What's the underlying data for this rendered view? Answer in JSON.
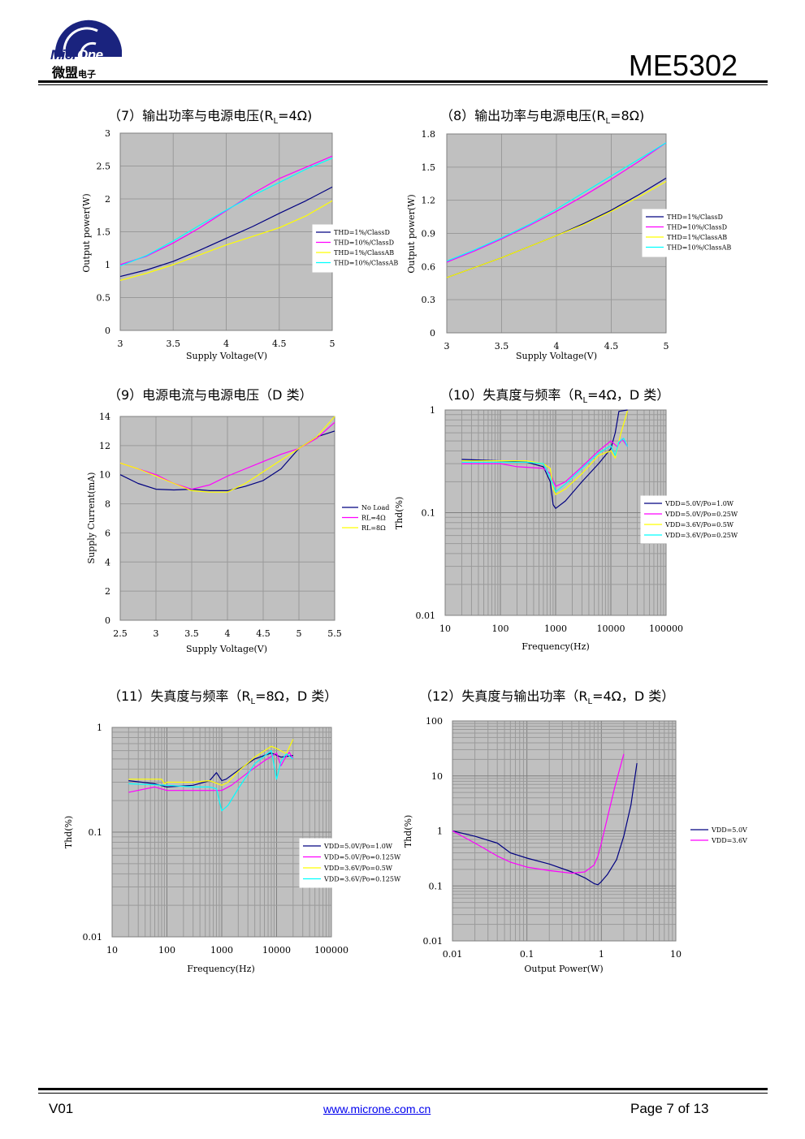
{
  "header": {
    "logo_word_part1": "Micr",
    "logo_word_part2": "One",
    "logo_cn": "微盟",
    "logo_cn_small": "电子",
    "part_number": "ME5302"
  },
  "colors": {
    "plot_bg": "#c0c0c0",
    "grid": "#9a9a9a",
    "navy": "#000080",
    "magenta": "#ff00ff",
    "yellow": "#ffff00",
    "cyan": "#00ffff"
  },
  "captions": [
    {
      "pre": "（7）输出功率与电源电压(R",
      "sub": "L",
      "post": "=4Ω)"
    },
    {
      "pre": "（8）输出功率与电源电压(R",
      "sub": "L",
      "post": "=8Ω)"
    },
    {
      "pre": "（9）电源电流与电源电压（D 类）",
      "sub": "",
      "post": ""
    },
    {
      "pre": "（10）失真度与频率（R",
      "sub": "L",
      "post": "=4Ω，D 类）"
    },
    {
      "pre": "（11）失真度与频率（R",
      "sub": "L",
      "post": "=8Ω，D 类）"
    },
    {
      "pre": "（12）失真度与输出功率（R",
      "sub": "L",
      "post": "=4Ω，D 类）"
    }
  ],
  "chart_data": [
    {
      "type": "line",
      "xlabel": "Supply Voltage(V)",
      "ylabel": "Output power(W)",
      "xlim": [
        3,
        5
      ],
      "ylim": [
        0,
        3
      ],
      "xticks": [
        "3",
        "3.5",
        "4",
        "4.5",
        "5"
      ],
      "yticks": [
        "0",
        "0.5",
        "1",
        "1.5",
        "2",
        "2.5",
        "3"
      ],
      "legend_position": "right",
      "series": [
        {
          "name": "THD=1%/ClassD",
          "color": "#000080",
          "x": [
            3,
            3.25,
            3.5,
            3.75,
            4,
            4.25,
            4.5,
            4.75,
            5
          ],
          "y": [
            0.82,
            0.92,
            1.05,
            1.22,
            1.4,
            1.58,
            1.78,
            1.97,
            2.18
          ]
        },
        {
          "name": "THD=10%/ClassD",
          "color": "#ff00ff",
          "x": [
            3,
            3.25,
            3.5,
            3.75,
            4,
            4.25,
            4.5,
            4.75,
            5
          ],
          "y": [
            1.0,
            1.13,
            1.33,
            1.56,
            1.82,
            2.08,
            2.31,
            2.48,
            2.65
          ]
        },
        {
          "name": "THD=1%/ClassAB",
          "color": "#ffff00",
          "x": [
            3,
            3.25,
            3.5,
            3.75,
            4,
            4.25,
            4.5,
            4.75,
            5
          ],
          "y": [
            0.76,
            0.87,
            1.0,
            1.15,
            1.3,
            1.43,
            1.56,
            1.74,
            1.97
          ]
        },
        {
          "name": "THD=10%/ClassAB",
          "color": "#00ffff",
          "x": [
            3,
            3.25,
            3.5,
            3.75,
            4,
            4.25,
            4.5,
            4.75,
            5
          ],
          "y": [
            0.98,
            1.14,
            1.36,
            1.6,
            1.83,
            2.05,
            2.25,
            2.45,
            2.62
          ]
        }
      ]
    },
    {
      "type": "line",
      "xlabel": "Supply Voltage(V)",
      "ylabel": "Output power(W)",
      "xlim": [
        3,
        5
      ],
      "ylim": [
        0,
        1.8
      ],
      "xticks": [
        "3",
        "3.5",
        "4",
        "4.5",
        "5"
      ],
      "yticks": [
        "0",
        "0.3",
        "0.6",
        "0.9",
        "1.2",
        "1.5",
        "1.8"
      ],
      "legend_position": "right",
      "series": [
        {
          "name": "THD=1%/ClassD",
          "color": "#000080",
          "x": [
            3,
            3.25,
            3.5,
            3.75,
            4,
            4.25,
            4.5,
            4.75,
            5
          ],
          "y": [
            0.5,
            0.59,
            0.68,
            0.78,
            0.88,
            0.99,
            1.11,
            1.25,
            1.4
          ]
        },
        {
          "name": "THD=10%/ClassD",
          "color": "#ff00ff",
          "x": [
            3,
            3.25,
            3.5,
            3.75,
            4,
            4.25,
            4.5,
            4.75,
            5
          ],
          "y": [
            0.64,
            0.74,
            0.85,
            0.97,
            1.1,
            1.24,
            1.39,
            1.55,
            1.72
          ]
        },
        {
          "name": "THD=1%/ClassAB",
          "color": "#ffff00",
          "x": [
            3,
            3.25,
            3.5,
            3.75,
            4,
            4.25,
            4.5,
            4.75,
            5
          ],
          "y": [
            0.5,
            0.59,
            0.68,
            0.78,
            0.88,
            0.98,
            1.1,
            1.23,
            1.37
          ]
        },
        {
          "name": "THD=10%/ClassAB",
          "color": "#00ffff",
          "x": [
            3,
            3.25,
            3.5,
            3.75,
            4,
            4.25,
            4.5,
            4.75,
            5
          ],
          "y": [
            0.65,
            0.75,
            0.86,
            0.98,
            1.12,
            1.27,
            1.42,
            1.57,
            1.72
          ]
        }
      ]
    },
    {
      "type": "line",
      "xlabel": "Supply Voltage(V)",
      "ylabel": "Supply Current(mA)",
      "xlim": [
        2.5,
        5.5
      ],
      "ylim": [
        0,
        14
      ],
      "xticks": [
        "2.5",
        "3",
        "3.5",
        "4",
        "4.5",
        "5",
        "5.5"
      ],
      "yticks": [
        "0",
        "2",
        "4",
        "6",
        "8",
        "10",
        "12",
        "14"
      ],
      "legend_position": "right",
      "series": [
        {
          "name": "No Load",
          "color": "#000080",
          "x": [
            2.5,
            2.75,
            3,
            3.25,
            3.5,
            3.75,
            4,
            4.25,
            4.5,
            4.75,
            5,
            5.25,
            5.5
          ],
          "y": [
            10.0,
            9.4,
            9.0,
            8.95,
            9.0,
            8.9,
            8.9,
            9.2,
            9.6,
            10.4,
            11.8,
            12.6,
            13.0
          ]
        },
        {
          "name": "RL=4Ω",
          "color": "#ff00ff",
          "x": [
            2.5,
            2.75,
            3,
            3.25,
            3.5,
            3.75,
            4,
            4.25,
            4.5,
            4.75,
            5,
            5.25,
            5.5
          ],
          "y": [
            10.8,
            10.4,
            10.0,
            9.4,
            9.0,
            9.3,
            9.9,
            10.4,
            10.9,
            11.4,
            11.8,
            12.5,
            13.6
          ]
        },
        {
          "name": "RL=8Ω",
          "color": "#ffff00",
          "x": [
            2.5,
            2.75,
            3,
            3.25,
            3.5,
            3.75,
            4,
            4.25,
            4.5,
            4.75,
            5,
            5.25,
            5.5
          ],
          "y": [
            10.8,
            10.4,
            9.9,
            9.4,
            8.9,
            8.8,
            8.8,
            9.4,
            10.2,
            11.0,
            11.8,
            12.6,
            14.0
          ]
        }
      ]
    },
    {
      "type": "line",
      "xlabel": "Frequency(Hz)",
      "ylabel": "Thd(%)",
      "xscale": "log",
      "yscale": "log",
      "xlim": [
        10,
        100000
      ],
      "ylim": [
        0.01,
        1
      ],
      "xticks": [
        "10",
        "100",
        "1000",
        "10000",
        "100000"
      ],
      "yticks": [
        "0.01",
        "0.1",
        "1"
      ],
      "legend_position": "right",
      "series": [
        {
          "name": "VDD=5.0V/Po=1.0W",
          "color": "#000080",
          "x": [
            20,
            100,
            300,
            600,
            800,
            900,
            1000,
            1500,
            3000,
            6000,
            10000,
            12000,
            14000,
            20000
          ],
          "y": [
            0.33,
            0.32,
            0.31,
            0.28,
            0.2,
            0.12,
            0.11,
            0.13,
            0.2,
            0.3,
            0.42,
            0.6,
            0.97,
            1.0
          ]
        },
        {
          "name": "VDD=5.0V/Po=0.25W",
          "color": "#ff00ff",
          "x": [
            20,
            100,
            200,
            600,
            800,
            1000,
            1500,
            3000,
            6000,
            10000,
            13000,
            16000,
            20000
          ],
          "y": [
            0.3,
            0.3,
            0.28,
            0.27,
            0.24,
            0.18,
            0.2,
            0.28,
            0.4,
            0.5,
            0.44,
            0.52,
            0.44
          ]
        },
        {
          "name": "VDD=3.6V/Po=0.5W",
          "color": "#ffff00",
          "x": [
            20,
            100,
            300,
            600,
            800,
            900,
            1000,
            1500,
            3000,
            6000,
            10000,
            12000,
            15000,
            20000
          ],
          "y": [
            0.32,
            0.32,
            0.32,
            0.3,
            0.27,
            0.17,
            0.15,
            0.17,
            0.24,
            0.36,
            0.4,
            0.34,
            0.58,
            0.98
          ]
        },
        {
          "name": "VDD=3.6V/Po=0.25W",
          "color": "#00ffff",
          "x": [
            20,
            100,
            300,
            600,
            800,
            1000,
            1500,
            3000,
            6000,
            10000,
            12000,
            14000,
            17000,
            20000
          ],
          "y": [
            0.31,
            0.31,
            0.31,
            0.3,
            0.22,
            0.16,
            0.19,
            0.27,
            0.38,
            0.45,
            0.36,
            0.49,
            0.53,
            0.44
          ]
        }
      ]
    },
    {
      "type": "line",
      "xlabel": "Frequency(Hz)",
      "ylabel": "Thd(%)",
      "xscale": "log",
      "yscale": "log",
      "xlim": [
        10,
        100000
      ],
      "ylim": [
        0.01,
        1
      ],
      "xticks": [
        "10",
        "100",
        "1000",
        "10000",
        "100000"
      ],
      "yticks": [
        "0.01",
        "0.1",
        "1"
      ],
      "legend_position": "right",
      "series": [
        {
          "name": "VDD=5.0V/Po=1.0W",
          "color": "#000080",
          "x": [
            20,
            60,
            100,
            300,
            600,
            800,
            1000,
            1200,
            2000,
            4000,
            8000,
            12000,
            16000,
            20000
          ],
          "y": [
            0.31,
            0.29,
            0.27,
            0.28,
            0.31,
            0.37,
            0.31,
            0.32,
            0.39,
            0.5,
            0.57,
            0.52,
            0.53,
            0.54
          ]
        },
        {
          "name": "VDD=5.0V/Po=0.125W",
          "color": "#ff00ff",
          "x": [
            20,
            60,
            100,
            300,
            600,
            1000,
            1500,
            3000,
            6000,
            10000,
            12000,
            14000,
            17000,
            20000
          ],
          "y": [
            0.24,
            0.27,
            0.25,
            0.25,
            0.25,
            0.25,
            0.28,
            0.37,
            0.48,
            0.57,
            0.43,
            0.5,
            0.58,
            0.5
          ]
        },
        {
          "name": "VDD=3.6V/Po=0.5W",
          "color": "#ffff00",
          "x": [
            20,
            50,
            80,
            90,
            100,
            300,
            600,
            1000,
            1300,
            2000,
            4000,
            8000,
            10000,
            15000,
            20000
          ],
          "y": [
            0.32,
            0.32,
            0.32,
            0.29,
            0.3,
            0.3,
            0.31,
            0.28,
            0.3,
            0.38,
            0.52,
            0.66,
            0.63,
            0.56,
            0.77
          ]
        },
        {
          "name": "VDD=3.6V/Po=0.125W",
          "color": "#00ffff",
          "x": [
            20,
            100,
            300,
            600,
            800,
            900,
            1000,
            1300,
            2000,
            4000,
            8000,
            10000,
            12000,
            15000,
            20000
          ],
          "y": [
            0.29,
            0.28,
            0.27,
            0.27,
            0.26,
            0.2,
            0.16,
            0.18,
            0.26,
            0.45,
            0.6,
            0.32,
            0.47,
            0.56,
            0.5
          ]
        }
      ]
    },
    {
      "type": "line",
      "xlabel": "Output Power(W)",
      "ylabel": "Thd(%)",
      "xscale": "log",
      "yscale": "log",
      "xlim": [
        0.01,
        10
      ],
      "ylim": [
        0.01,
        100
      ],
      "xticks": [
        "0.01",
        "0.1",
        "1",
        "10"
      ],
      "yticks": [
        "0.01",
        "0.1",
        "1",
        "10",
        "100"
      ],
      "legend_position": "right",
      "series": [
        {
          "name": "VDD=5.0V",
          "color": "#000080",
          "x": [
            0.01,
            0.02,
            0.04,
            0.06,
            0.1,
            0.2,
            0.4,
            0.6,
            0.8,
            0.9,
            1.0,
            1.2,
            1.6,
            2.0,
            2.5,
            3.0
          ],
          "y": [
            1.0,
            0.8,
            0.6,
            0.4,
            0.32,
            0.25,
            0.18,
            0.14,
            0.11,
            0.105,
            0.12,
            0.16,
            0.3,
            0.8,
            3.0,
            17
          ]
        },
        {
          "name": "VDD=3.6V",
          "color": "#ff00ff",
          "x": [
            0.01,
            0.02,
            0.04,
            0.06,
            0.1,
            0.2,
            0.4,
            0.6,
            0.8,
            0.9,
            1.0,
            1.2,
            1.5,
            2.0
          ],
          "y": [
            1.0,
            0.6,
            0.35,
            0.27,
            0.22,
            0.19,
            0.17,
            0.18,
            0.24,
            0.35,
            0.6,
            1.7,
            6.0,
            25
          ]
        }
      ]
    }
  ],
  "footer": {
    "version": "V01",
    "url": "www.microne.com.cn",
    "page": "Page 7 of 13"
  }
}
